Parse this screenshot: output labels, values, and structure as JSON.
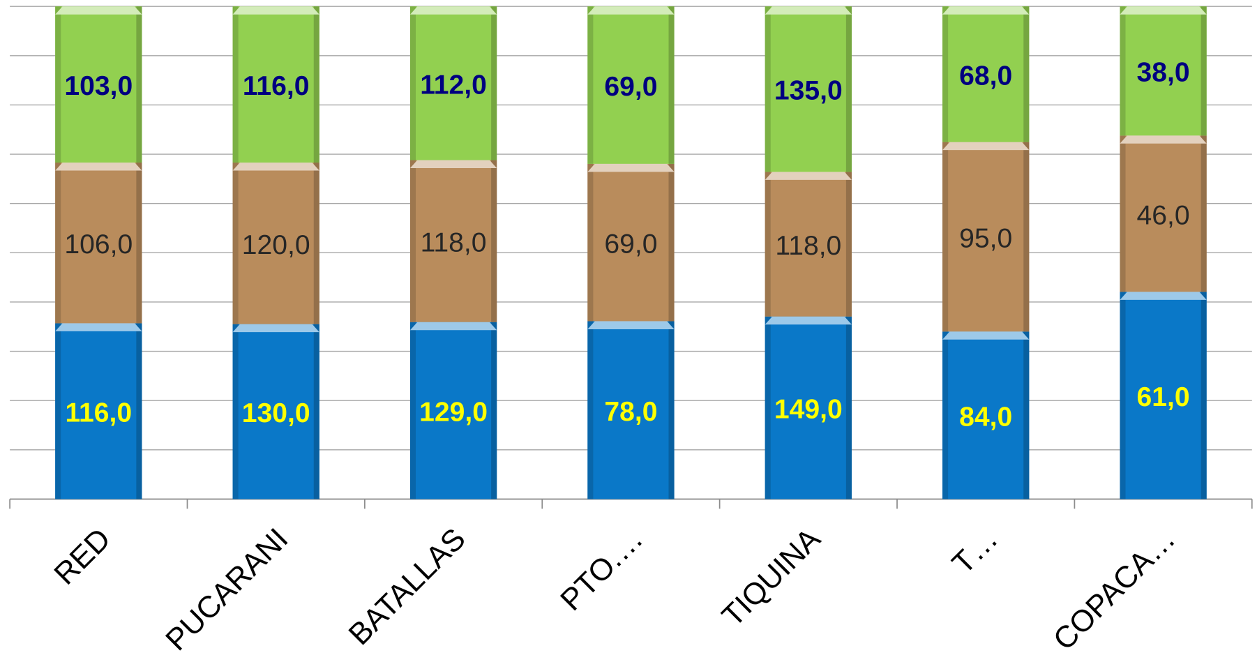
{
  "chart_data": {
    "type": "bar",
    "stack": "percent",
    "categories": [
      "RED",
      "PUCARANI",
      "BATALLAS",
      "PTO.…",
      "TIQUINA",
      "T…",
      "COPACA…"
    ],
    "series": [
      {
        "color": "#0a78c8",
        "label_color": "#ffff00",
        "label_bold": true,
        "values": [
          116,
          130,
          129,
          78,
          149,
          84,
          61
        ],
        "value_labels": [
          "116,0",
          "130,0",
          "129,0",
          "78,0",
          "149,0",
          "84,0",
          "61,0"
        ]
      },
      {
        "color": "#b98c5c",
        "label_color": "#262626",
        "label_bold": false,
        "values": [
          106,
          120,
          118,
          69,
          118,
          95,
          46
        ],
        "value_labels": [
          "106,0",
          "120,0",
          "118,0",
          "69,0",
          "118,0",
          "95,0",
          "46,0"
        ]
      },
      {
        "color": "#92d050",
        "label_color": "#000080",
        "label_bold": true,
        "values": [
          103,
          116,
          112,
          69,
          135,
          68,
          38
        ],
        "value_labels": [
          "103,0",
          "116,0",
          "112,0",
          "69,0",
          "135,0",
          "68,0",
          "38,0"
        ]
      }
    ],
    "ylim": [
      0,
      100
    ],
    "yticks": [
      0,
      10,
      20,
      30,
      40,
      50,
      60,
      70,
      80,
      90,
      100
    ],
    "grid": true
  }
}
